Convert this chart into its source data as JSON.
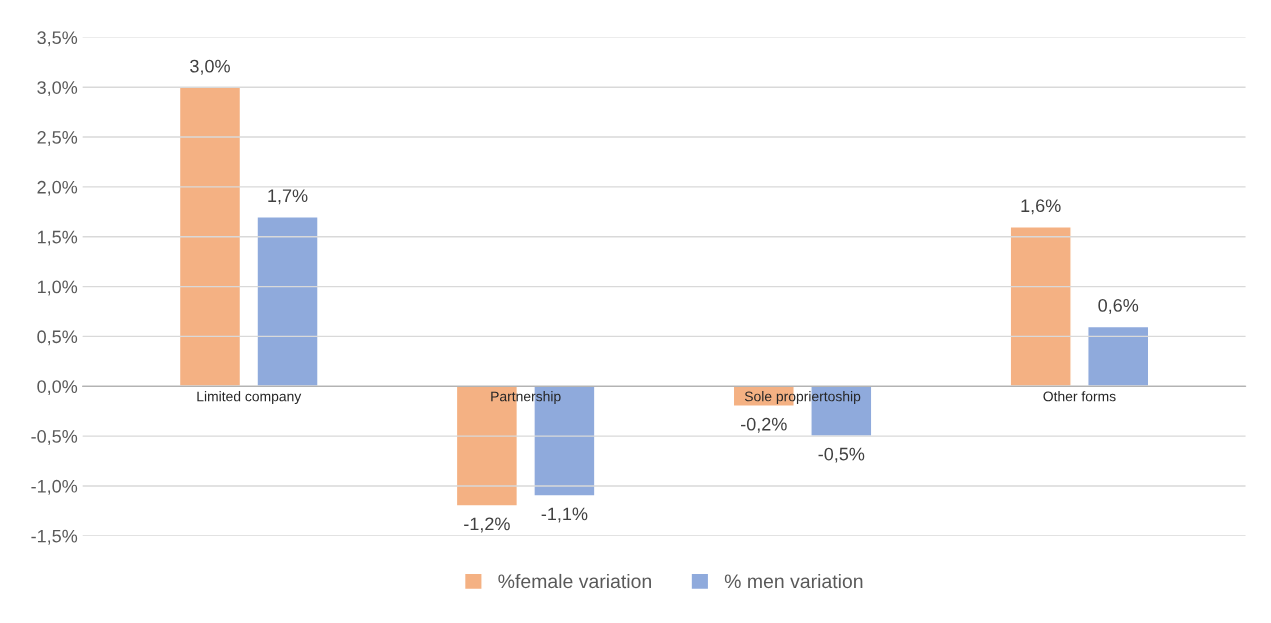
{
  "chart_data": {
    "type": "bar",
    "categories": [
      "Limited company",
      "Partnership",
      "Sole propriertoship",
      "Other forms"
    ],
    "series": [
      {
        "name": "%female variation",
        "color": "#f4b183",
        "values": [
          3.0,
          -1.2,
          -0.2,
          1.6
        ],
        "value_labels": [
          "3,0%",
          "-1,2%",
          "-0,2%",
          "1,6%"
        ]
      },
      {
        "name": "% men variation",
        "color": "#8faadc",
        "values": [
          1.7,
          -1.1,
          -0.5,
          0.6
        ],
        "value_labels": [
          "1,7%",
          "-1,1%",
          "-0,5%",
          "0,6%"
        ]
      }
    ],
    "ylim": [
      -1.5,
      3.5
    ],
    "yticks": [
      {
        "value": -1.5,
        "label": "-1,5%"
      },
      {
        "value": -1.0,
        "label": "-1,0%"
      },
      {
        "value": -0.5,
        "label": "-0,5%"
      },
      {
        "value": 0,
        "label": "0,0%"
      },
      {
        "value": 0.5,
        "label": "0,5%"
      },
      {
        "value": 1.0,
        "label": "1,0%"
      },
      {
        "value": 1.5,
        "label": "1,5%"
      },
      {
        "value": 2.0,
        "label": "2,0%"
      },
      {
        "value": 2.5,
        "label": "2,5%"
      },
      {
        "value": 3.0,
        "label": "3,0%"
      },
      {
        "value": 3.5,
        "label": "3,5%"
      }
    ],
    "grid": "y",
    "legend": "bottom"
  }
}
